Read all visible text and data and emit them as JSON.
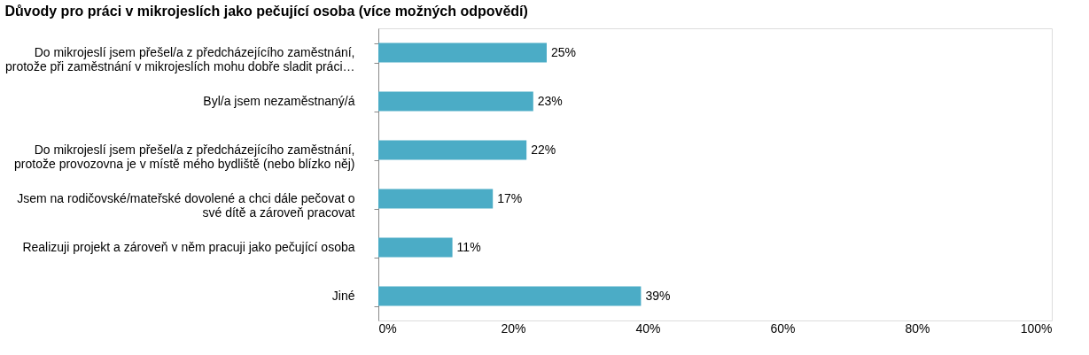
{
  "chart_data": {
    "type": "bar",
    "orientation": "horizontal",
    "title": "Důvody pro práci v mikrojeslích jako pečující osoba (více možných odpovědí)",
    "categories": [
      "Do mikrojeslí jsem přešel/a z předcházejícího zaměstnání,\nprotože při zaměstnání v mikrojeslích mohu dobře sladit práci…",
      "Byl/a jsem nezaměstnaný/á",
      "Do mikrojeslí jsem přešel/a z předcházejícího zaměstnání,\nprotože provozovna je v místě mého bydliště (nebo blízko něj)",
      "Jsem na rodičovské/mateřské dovolené a chci dále pečovat o\nsvé dítě a zároveň pracovat",
      "Realizuji projekt a zároveň v něm pracuji jako pečující osoba",
      "Jiné"
    ],
    "values": [
      25,
      23,
      22,
      17,
      11,
      39
    ],
    "value_labels": [
      "25%",
      "23%",
      "22%",
      "17%",
      "11%",
      "39%"
    ],
    "color": "#4bacc6",
    "xlim": [
      0,
      100
    ],
    "xticks": [
      {
        "value": 0,
        "label": "0%"
      },
      {
        "value": 20,
        "label": "20%"
      },
      {
        "value": 40,
        "label": "40%"
      },
      {
        "value": 60,
        "label": "60%"
      },
      {
        "value": 80,
        "label": "80%"
      },
      {
        "value": 100,
        "label": "100%"
      }
    ],
    "grid": false
  }
}
